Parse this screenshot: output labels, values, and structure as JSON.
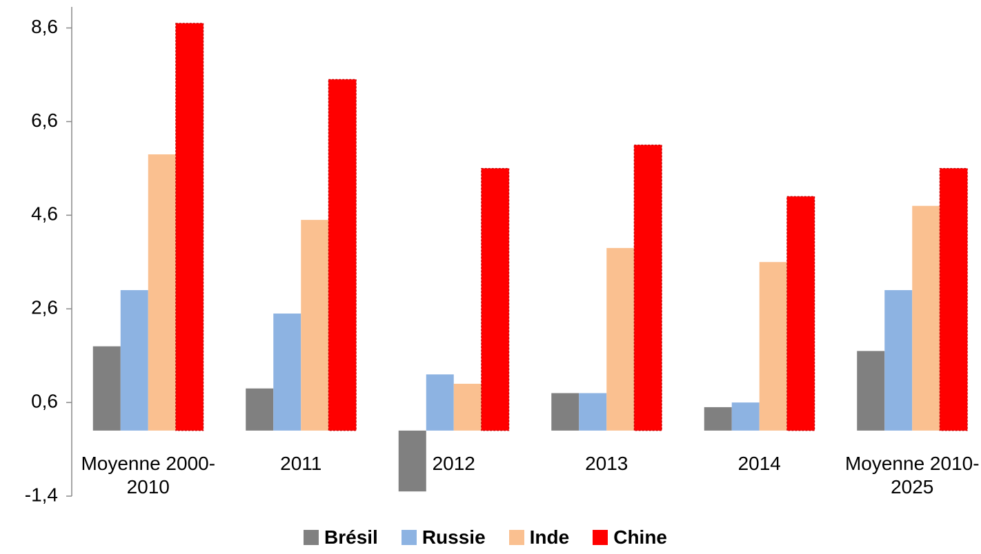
{
  "chart_data": {
    "type": "bar",
    "categories": [
      "Moyenne 2000-2010",
      "2011",
      "2012",
      "2013",
      "2014",
      "Moyenne 2010-2025"
    ],
    "series": [
      {
        "name": "Brésil",
        "color": "#808080",
        "values": [
          1.8,
          0.9,
          -1.3,
          0.8,
          0.5,
          1.7
        ]
      },
      {
        "name": "Russie",
        "color": "#8db3e2",
        "values": [
          3.0,
          2.5,
          1.2,
          0.8,
          0.6,
          3.0
        ]
      },
      {
        "name": "Inde",
        "color": "#fac090",
        "values": [
          5.9,
          4.5,
          1.0,
          3.9,
          3.6,
          4.8
        ]
      },
      {
        "name": "Chine",
        "color": "#ff0000",
        "values": [
          8.7,
          7.5,
          5.6,
          6.1,
          5.0,
          5.6
        ]
      }
    ],
    "ylim": [
      -1.4,
      9.05
    ],
    "yticks": [
      {
        "value": -1.4,
        "label": "-1,4"
      },
      {
        "value": 0.6,
        "label": "0,6"
      },
      {
        "value": 2.6,
        "label": "2,6"
      },
      {
        "value": 4.6,
        "label": "4,6"
      },
      {
        "value": 6.6,
        "label": "6,6"
      },
      {
        "value": 8.6,
        "label": "8,6"
      }
    ],
    "legend": "bottom"
  }
}
